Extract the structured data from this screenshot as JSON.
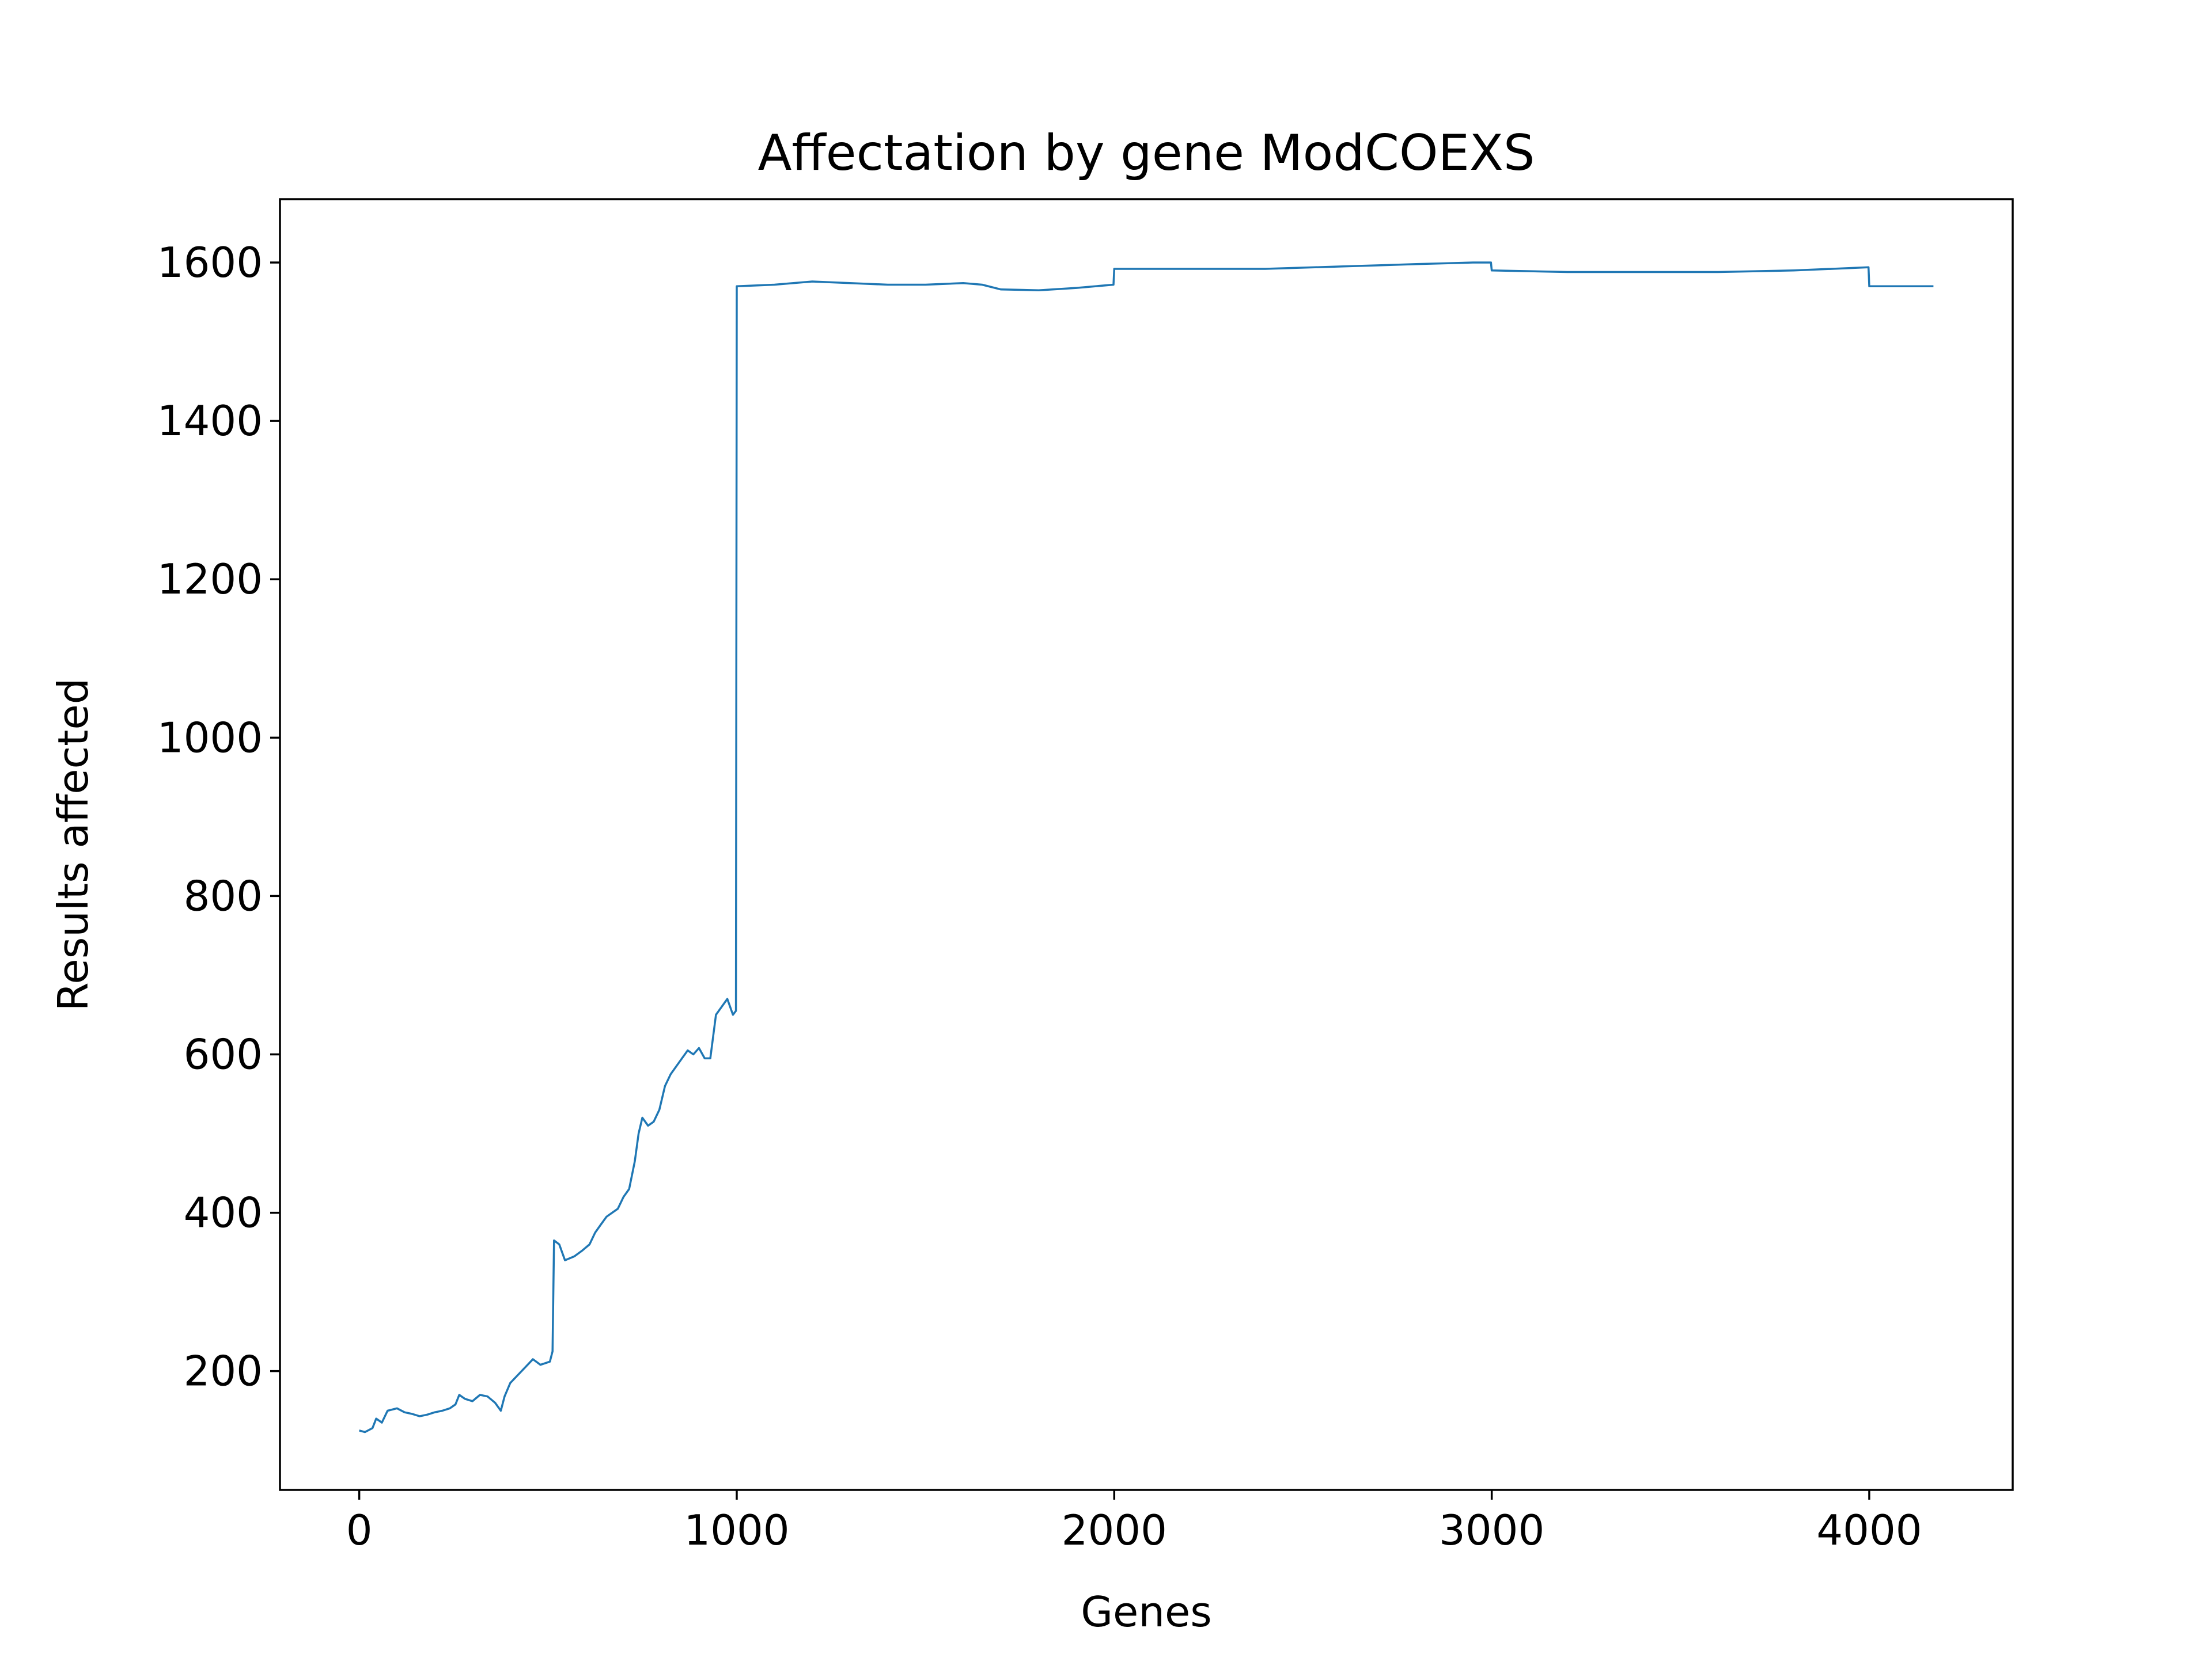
{
  "chart_data": {
    "type": "line",
    "title": "Affectation by gene ModCOEXS",
    "xlabel": "Genes",
    "ylabel": "Results affected",
    "xlim": [
      -210,
      4380
    ],
    "ylim": [
      50,
      1680
    ],
    "xticks": [
      0,
      1000,
      2000,
      3000,
      4000
    ],
    "yticks": [
      200,
      400,
      600,
      800,
      1000,
      1200,
      1400,
      1600
    ],
    "grid": false,
    "legend": "none",
    "series": [
      {
        "color": "#1f77b4",
        "points": [
          [
            0,
            125
          ],
          [
            15,
            123
          ],
          [
            35,
            128
          ],
          [
            45,
            140
          ],
          [
            60,
            135
          ],
          [
            75,
            150
          ],
          [
            100,
            153
          ],
          [
            120,
            148
          ],
          [
            140,
            146
          ],
          [
            160,
            143
          ],
          [
            180,
            145
          ],
          [
            200,
            148
          ],
          [
            220,
            150
          ],
          [
            240,
            153
          ],
          [
            255,
            158
          ],
          [
            265,
            170
          ],
          [
            280,
            165
          ],
          [
            300,
            162
          ],
          [
            320,
            170
          ],
          [
            340,
            168
          ],
          [
            360,
            160
          ],
          [
            375,
            150
          ],
          [
            385,
            168
          ],
          [
            400,
            185
          ],
          [
            420,
            195
          ],
          [
            440,
            205
          ],
          [
            460,
            215
          ],
          [
            480,
            208
          ],
          [
            505,
            212
          ],
          [
            512,
            225
          ],
          [
            516,
            365
          ],
          [
            530,
            360
          ],
          [
            545,
            340
          ],
          [
            570,
            345
          ],
          [
            590,
            352
          ],
          [
            610,
            360
          ],
          [
            625,
            375
          ],
          [
            640,
            385
          ],
          [
            655,
            395
          ],
          [
            670,
            400
          ],
          [
            685,
            405
          ],
          [
            700,
            420
          ],
          [
            715,
            430
          ],
          [
            730,
            465
          ],
          [
            740,
            500
          ],
          [
            750,
            520
          ],
          [
            765,
            510
          ],
          [
            780,
            515
          ],
          [
            795,
            530
          ],
          [
            810,
            560
          ],
          [
            825,
            575
          ],
          [
            840,
            585
          ],
          [
            855,
            595
          ],
          [
            870,
            605
          ],
          [
            885,
            600
          ],
          [
            900,
            608
          ],
          [
            915,
            595
          ],
          [
            930,
            595
          ],
          [
            945,
            650
          ],
          [
            960,
            660
          ],
          [
            975,
            670
          ],
          [
            990,
            650
          ],
          [
            998,
            655
          ],
          [
            1000,
            1570
          ],
          [
            1100,
            1572
          ],
          [
            1200,
            1576
          ],
          [
            1300,
            1574
          ],
          [
            1400,
            1572
          ],
          [
            1500,
            1572
          ],
          [
            1600,
            1574
          ],
          [
            1650,
            1572
          ],
          [
            1700,
            1566
          ],
          [
            1800,
            1565
          ],
          [
            1900,
            1568
          ],
          [
            1998,
            1572
          ],
          [
            2000,
            1592
          ],
          [
            2200,
            1592
          ],
          [
            2400,
            1592
          ],
          [
            2600,
            1595
          ],
          [
            2800,
            1598
          ],
          [
            2950,
            1600
          ],
          [
            2998,
            1600
          ],
          [
            3000,
            1590
          ],
          [
            3200,
            1588
          ],
          [
            3400,
            1588
          ],
          [
            3600,
            1588
          ],
          [
            3800,
            1590
          ],
          [
            3998,
            1594
          ],
          [
            4000,
            1570
          ],
          [
            4170,
            1570
          ]
        ]
      }
    ]
  }
}
